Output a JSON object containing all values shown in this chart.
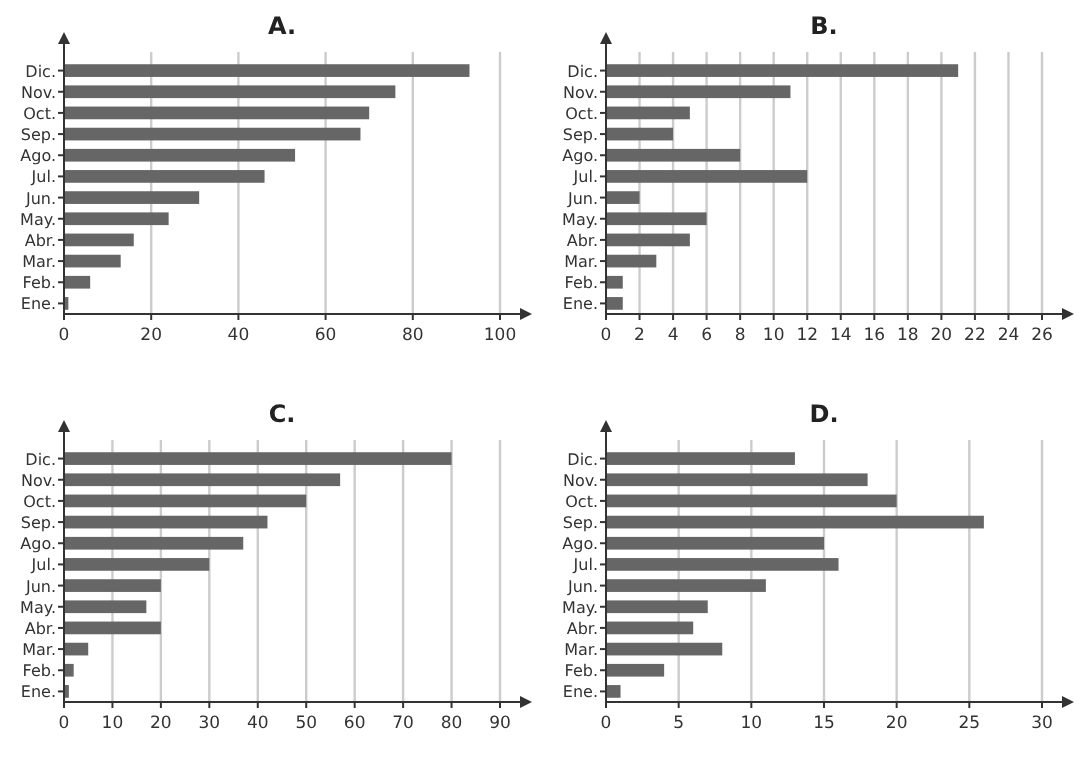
{
  "chart_data": [
    {
      "type": "bar",
      "orientation": "horizontal",
      "title": "A.",
      "categories": [
        "Dic.",
        "Nov.",
        "Oct.",
        "Sep.",
        "Ago.",
        "Jul.",
        "Jun.",
        "May.",
        "Abr.",
        "Mar.",
        "Feb.",
        "Ene."
      ],
      "values": [
        93,
        76,
        70,
        68,
        53,
        46,
        31,
        24,
        16,
        13,
        6,
        1
      ],
      "color": "#666666",
      "xlim": [
        0,
        100
      ],
      "xticks": [
        0,
        20,
        40,
        60,
        80,
        100
      ],
      "grid": "x"
    },
    {
      "type": "bar",
      "orientation": "horizontal",
      "title": "B.",
      "categories": [
        "Dic.",
        "Nov.",
        "Oct.",
        "Sep.",
        "Ago.",
        "Jul.",
        "Jun.",
        "May.",
        "Abr.",
        "Mar.",
        "Feb.",
        "Ene."
      ],
      "values": [
        21,
        11,
        5,
        4,
        8,
        12,
        2,
        6,
        5,
        3,
        1,
        1
      ],
      "color": "#666666",
      "xlim": [
        0,
        26
      ],
      "xticks": [
        0,
        2,
        4,
        6,
        8,
        10,
        12,
        14,
        16,
        18,
        20,
        22,
        24,
        26
      ],
      "grid": "x"
    },
    {
      "type": "bar",
      "orientation": "horizontal",
      "title": "C.",
      "categories": [
        "Dic.",
        "Nov.",
        "Oct.",
        "Sep.",
        "Ago.",
        "Jul.",
        "Jun.",
        "May.",
        "Abr.",
        "Mar.",
        "Feb.",
        "Ene."
      ],
      "values": [
        80,
        57,
        50,
        42,
        37,
        30,
        20,
        17,
        20,
        5,
        2,
        1
      ],
      "color": "#666666",
      "xlim": [
        0,
        90
      ],
      "xticks": [
        0,
        10,
        20,
        30,
        40,
        50,
        60,
        70,
        80,
        90
      ],
      "grid": "x"
    },
    {
      "type": "bar",
      "orientation": "horizontal",
      "title": "D.",
      "categories": [
        "Dic.",
        "Nov.",
        "Oct.",
        "Sep.",
        "Ago.",
        "Jul.",
        "Jun.",
        "May.",
        "Abr.",
        "Mar.",
        "Feb.",
        "Ene."
      ],
      "values": [
        13,
        18,
        20,
        26,
        15,
        16,
        11,
        7,
        6,
        8,
        4,
        1
      ],
      "color": "#666666",
      "xlim": [
        0,
        30
      ],
      "xticks": [
        0,
        5,
        10,
        15,
        20,
        25,
        30
      ],
      "grid": "x"
    }
  ]
}
